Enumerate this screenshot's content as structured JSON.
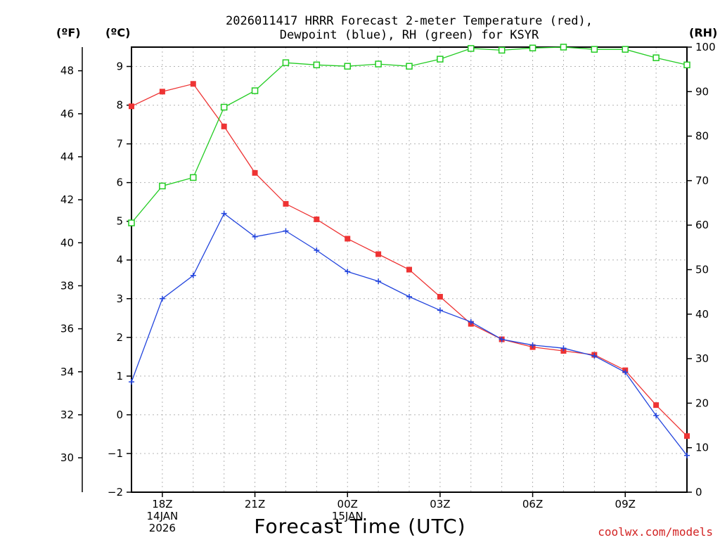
{
  "chart_data": {
    "type": "line",
    "title_lines": [
      "2026011417 HRRR Forecast 2-meter Temperature (red),",
      "Dewpoint (blue), RH (green) for KSYR"
    ],
    "xlabel": "Forecast Time (UTC)",
    "credit": "coolwx.com/models",
    "left_unit_label": "(ºF)",
    "celsius_unit_label": "(ºC)",
    "right_unit_label": "(RH)",
    "x_hours": [
      17,
      18,
      19,
      20,
      21,
      22,
      23,
      24,
      25,
      26,
      27,
      28,
      29,
      30,
      31,
      32,
      33,
      34,
      35
    ],
    "x_range": [
      17,
      35
    ],
    "x_ticks": [
      {
        "hour": 18,
        "lines": [
          "18Z",
          "14JAN",
          "2026"
        ]
      },
      {
        "hour": 21,
        "lines": [
          "21Z"
        ]
      },
      {
        "hour": 24,
        "lines": [
          "00Z",
          "15JAN"
        ]
      },
      {
        "hour": 27,
        "lines": [
          "03Z"
        ]
      },
      {
        "hour": 30,
        "lines": [
          "06Z"
        ]
      },
      {
        "hour": 33,
        "lines": [
          "09Z"
        ]
      }
    ],
    "celsius_axis": {
      "min": -2,
      "max": 9.5,
      "ticks": [
        -2,
        -1,
        0,
        1,
        2,
        3,
        4,
        5,
        6,
        7,
        8,
        9
      ]
    },
    "fahrenheit_axis": {
      "ticks": [
        30,
        32,
        34,
        36,
        38,
        40,
        42,
        44,
        46,
        48
      ]
    },
    "rh_axis": {
      "min": 0,
      "max": 100,
      "ticks": [
        0,
        10,
        20,
        30,
        40,
        50,
        60,
        70,
        80,
        90,
        100
      ]
    },
    "grid": true,
    "series": [
      {
        "name": "Temperature",
        "axis": "celsius",
        "color": "#ee3333",
        "marker": "filled-square",
        "values": [
          7.97,
          8.35,
          8.55,
          7.45,
          6.25,
          5.45,
          5.05,
          4.55,
          4.15,
          3.75,
          3.05,
          2.35,
          1.95,
          1.75,
          1.65,
          1.55,
          1.15,
          0.25,
          -0.55
        ]
      },
      {
        "name": "Dewpoint",
        "axis": "celsius",
        "color": "#2244dd",
        "marker": "plus",
        "values": [
          0.85,
          3.0,
          3.6,
          5.2,
          4.6,
          4.75,
          4.25,
          3.7,
          3.45,
          3.05,
          2.7,
          2.4,
          1.95,
          1.8,
          1.72,
          1.52,
          1.1,
          -0.02,
          -1.05
        ]
      },
      {
        "name": "RH",
        "axis": "rh",
        "color": "#22cc22",
        "marker": "open-square",
        "values": [
          60.5,
          68.8,
          70.7,
          86.5,
          90.2,
          96.5,
          96.0,
          95.7,
          96.2,
          95.7,
          97.3,
          99.7,
          99.3,
          99.8,
          100.0,
          99.5,
          99.5,
          97.6,
          96.0
        ]
      }
    ]
  }
}
